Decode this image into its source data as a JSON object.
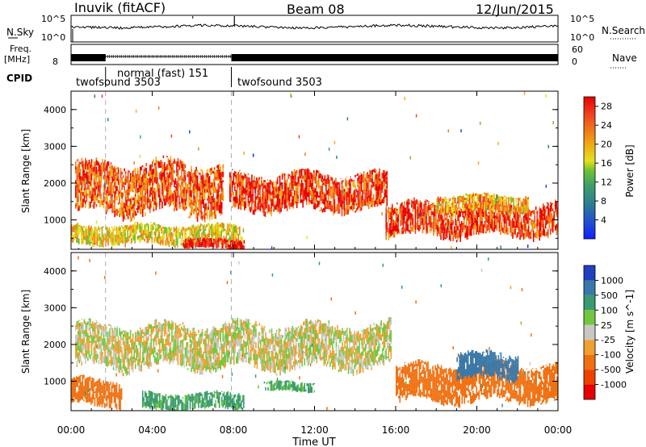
{
  "header": {
    "station": "Inuvik (fitACF)",
    "beam": "Beam 08",
    "date": "12/Jun/2015"
  },
  "top_panels": {
    "nsky_label": "N.Sky",
    "nsky_ticks": [
      "10^5",
      "10^0"
    ],
    "nsearch_label": "N.Search",
    "nsearch_ticks": [
      "10^5",
      "10^0"
    ],
    "freq_label": "Freq.",
    "freq_unit": "[MHz]",
    "freq_ticks": [
      "8"
    ],
    "nave_label": "Nave",
    "nave_ticks": [
      "60",
      "0"
    ],
    "cpid_label": "CPID",
    "cpid_segments": [
      {
        "label": "twofsound 3503",
        "start": 0.0,
        "end": 1.7
      },
      {
        "label": "normal (fast) 151",
        "start": 1.7,
        "end": 7.9
      },
      {
        "label": "twofsound 3503",
        "start": 7.9,
        "end": 24.0
      }
    ]
  },
  "chart_data": [
    {
      "type": "heatmap",
      "panel": "power",
      "ylabel": "Slant Range [km]",
      "xlabel": "",
      "xlim": [
        0,
        24
      ],
      "ylim": [
        200,
        4500
      ],
      "yticks": [
        "1000",
        "2000",
        "3000",
        "4000"
      ],
      "colorbar": {
        "label": "Power [dB]",
        "ticks": [
          "28",
          "24",
          "20",
          "16",
          "12",
          "8",
          "4"
        ],
        "range": [
          0,
          30
        ],
        "colors": [
          "#1020ff",
          "#2050d0",
          "#2d7f8f",
          "#3ea06a",
          "#70c030",
          "#e4e020",
          "#f0b010",
          "#f08018",
          "#f04020",
          "#e80000"
        ]
      },
      "echo_regions": [
        {
          "t_start": 0.2,
          "t_end": 7.5,
          "r_low": 1100,
          "r_high": 2600,
          "level": 24
        },
        {
          "t_start": 7.8,
          "t_end": 15.6,
          "r_low": 1200,
          "r_high": 2300,
          "level": 26
        },
        {
          "t_start": 0.0,
          "t_end": 8.5,
          "r_low": 300,
          "r_high": 900,
          "level": 18
        },
        {
          "t_start": 5.5,
          "t_end": 8.5,
          "r_low": 200,
          "r_high": 500,
          "level": 28
        },
        {
          "t_start": 15.5,
          "t_end": 24.0,
          "r_low": 500,
          "r_high": 1500,
          "level": 26
        },
        {
          "t_start": 18.0,
          "t_end": 22.5,
          "r_low": 1200,
          "r_high": 1700,
          "level": 20
        }
      ]
    },
    {
      "type": "heatmap",
      "panel": "velocity",
      "ylabel": "Slant Range [km]",
      "xlabel": "Time UT",
      "xlim": [
        0,
        24
      ],
      "ylim": [
        200,
        4500
      ],
      "xticks": [
        "00:00",
        "04:00",
        "08:00",
        "12:00",
        "16:00",
        "20:00",
        "00:00"
      ],
      "yticks": [
        "1000",
        "2000",
        "3000",
        "4000"
      ],
      "colorbar": {
        "label": "Velocity [m s^-1]",
        "ticks": [
          "1000",
          "500",
          "100",
          "25",
          "-25",
          "-100",
          "-500",
          "-1000"
        ],
        "colors": [
          "#2040c0",
          "#3a78a8",
          "#3a9a70",
          "#70c840",
          "#c8c8c0",
          "#f0a030",
          "#f07010",
          "#f04000",
          "#e80000"
        ]
      },
      "echo_regions": [
        {
          "t_start": 0.2,
          "t_end": 15.8,
          "r_low": 1300,
          "r_high": 2600,
          "velocity": 0
        },
        {
          "t_start": 0.0,
          "t_end": 2.5,
          "r_low": 300,
          "r_high": 1100,
          "velocity": -300
        },
        {
          "t_start": 3.5,
          "t_end": 8.5,
          "r_low": 200,
          "r_high": 700,
          "velocity": 150
        },
        {
          "t_start": 9.5,
          "t_end": 12.0,
          "r_low": 700,
          "r_high": 1000,
          "velocity": 150
        },
        {
          "t_start": 16.0,
          "t_end": 24.0,
          "r_low": 400,
          "r_high": 1500,
          "velocity": -300
        },
        {
          "t_start": 19.0,
          "t_end": 22.0,
          "r_low": 1000,
          "r_high": 1800,
          "velocity": 600
        }
      ]
    }
  ],
  "colors": {
    "gray_scatter": "#c8c8c0",
    "dashed_line": "#b0b0b0"
  }
}
